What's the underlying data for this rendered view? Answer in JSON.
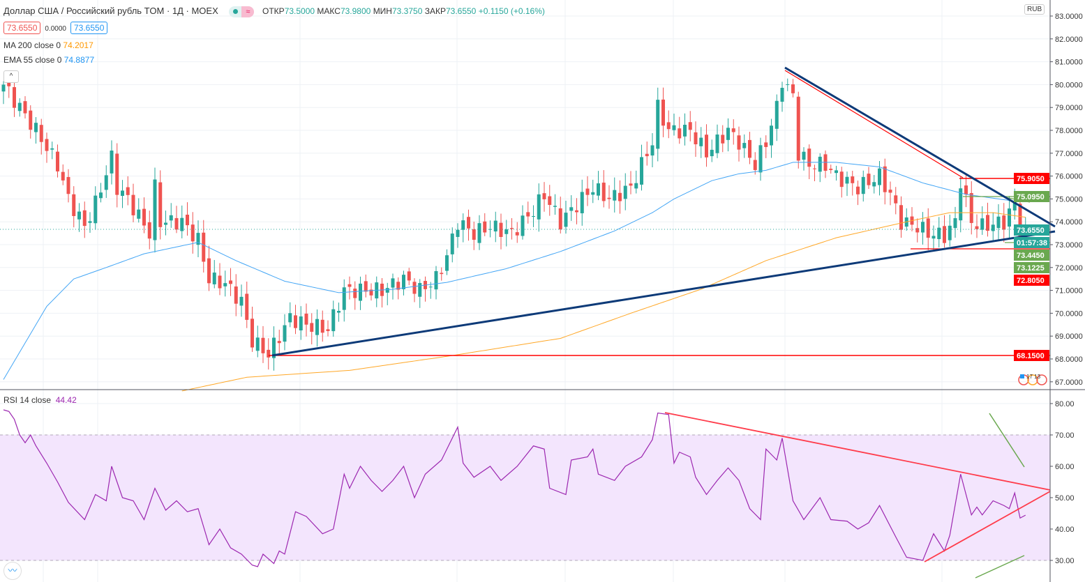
{
  "header": {
    "symbol": "Доллар США / Российский рубль TOM · 1Д · MOEX",
    "open_label": "ОТКР",
    "open": "73.5000",
    "high_label": "МАКС",
    "high": "73.9800",
    "low_label": "МИН",
    "low": "73.3750",
    "close_label": "ЗАКР",
    "close": "73.6550",
    "change": "+0.1150 (+0.16%)",
    "status_icon": "≈"
  },
  "quote": {
    "bid": "73.6550",
    "spread": "0.0000",
    "ask": "73.6550"
  },
  "indicators": {
    "ma_label": "MA 200 close 0",
    "ma_value": "74.2017",
    "ema_label": "EMA 55 close 0",
    "ema_value": "74.8877",
    "rsi_label": "RSI 14 close",
    "rsi_value": "44.42"
  },
  "currency": "RUB",
  "collapse_icon": "^",
  "logo_icon": "tradingview-logo",
  "colors": {
    "up": "#26a69a",
    "down": "#ef5350",
    "ema": "#42a5f5",
    "ma": "#ffa726",
    "rsi": "#9c27b0",
    "trend": "#0d3a78"
  },
  "chart_data": [
    {
      "type": "candlestick",
      "title": "Доллар США / Российский рубль TOM · 1Д · MOEX",
      "ylim": [
        66.6,
        83.0
      ],
      "yticks": [
        "83.0000",
        "82.0000",
        "81.0000",
        "80.0000",
        "79.0000",
        "78.0000",
        "77.0000",
        "76.0000",
        "75.0000",
        "74.0000",
        "73.0000",
        "72.0000",
        "71.0000",
        "70.0000",
        "69.0000",
        "68.0000",
        "67.0000"
      ],
      "close_path": [
        [
          0,
          80
        ],
        [
          6,
          78
        ],
        [
          10,
          76.5
        ],
        [
          12,
          75
        ],
        [
          15,
          73.8
        ],
        [
          17,
          74.8
        ],
        [
          20,
          76.8
        ],
        [
          21,
          75.5
        ],
        [
          23,
          75
        ],
        [
          27,
          73.5
        ],
        [
          28,
          75.5
        ],
        [
          29,
          74
        ],
        [
          33,
          74
        ],
        [
          36,
          73.2
        ],
        [
          38,
          71.5
        ],
        [
          41,
          71.3
        ],
        [
          44,
          70.5
        ],
        [
          46,
          68.8
        ],
        [
          49,
          68.2
        ],
        [
          53,
          69.8
        ],
        [
          56,
          69.5
        ],
        [
          60,
          69.3
        ],
        [
          63,
          71
        ],
        [
          66,
          71
        ],
        [
          70,
          71
        ],
        [
          74,
          71.5
        ],
        [
          77,
          71
        ],
        [
          80,
          71.5
        ],
        [
          82,
          72.5
        ],
        [
          84,
          74
        ],
        [
          87,
          73.5
        ],
        [
          90,
          73.8
        ],
        [
          94,
          73.5
        ],
        [
          98,
          74.5
        ],
        [
          100,
          75.2
        ],
        [
          103,
          74
        ],
        [
          105,
          74.5
        ],
        [
          107,
          75
        ],
        [
          109,
          75.5
        ],
        [
          112,
          75
        ],
        [
          116,
          75.5
        ],
        [
          118,
          76.5
        ],
        [
          120,
          77.5
        ],
        [
          121,
          79
        ],
        [
          123,
          78
        ],
        [
          125,
          78
        ],
        [
          127,
          78
        ],
        [
          130,
          77
        ],
        [
          132,
          77.5
        ],
        [
          134,
          78
        ],
        [
          136,
          77.5
        ],
        [
          139,
          76.5
        ],
        [
          141,
          77.5
        ],
        [
          143,
          79
        ],
        [
          144,
          80.2
        ],
        [
          146,
          79.5
        ],
        [
          147,
          77
        ],
        [
          149,
          76.5
        ],
        [
          152,
          76.5
        ],
        [
          154,
          76
        ],
        [
          158,
          75.5
        ],
        [
          162,
          76
        ],
        [
          164,
          75.2
        ],
        [
          166,
          74
        ],
        [
          169,
          73.8
        ],
        [
          171,
          73.5
        ],
        [
          174,
          73.4
        ],
        [
          176,
          74
        ],
        [
          177,
          75.8
        ],
        [
          179,
          74
        ],
        [
          181,
          73.8
        ],
        [
          185,
          74
        ],
        [
          187,
          74.8
        ],
        [
          188,
          73.6
        ],
        [
          189,
          73.655
        ]
      ],
      "ema55_path": [
        [
          0,
          67.1
        ],
        [
          8,
          70.3
        ],
        [
          13,
          71.5
        ],
        [
          19,
          72
        ],
        [
          26,
          72.6
        ],
        [
          36,
          73.1
        ],
        [
          43,
          72.3
        ],
        [
          52,
          71.4
        ],
        [
          62,
          70.9
        ],
        [
          72,
          71.05
        ],
        [
          82,
          71.35
        ],
        [
          93,
          71.95
        ],
        [
          103,
          72.7
        ],
        [
          113,
          73.6
        ],
        [
          120,
          74.4
        ],
        [
          124,
          75
        ],
        [
          131,
          75.8
        ],
        [
          136,
          76.1
        ],
        [
          141,
          76.25
        ],
        [
          146,
          76.6
        ],
        [
          154,
          76.6
        ],
        [
          162,
          76.4
        ],
        [
          170,
          75.7
        ],
        [
          178,
          75.2
        ],
        [
          187,
          74.9
        ],
        [
          189,
          74.89
        ]
      ],
      "ma200_path": [
        [
          33,
          66.6
        ],
        [
          45,
          67.2
        ],
        [
          64,
          67.5
        ],
        [
          83,
          68.15
        ],
        [
          103,
          68.9
        ],
        [
          116,
          70
        ],
        [
          129,
          71.05
        ],
        [
          141,
          72.3
        ],
        [
          154,
          73.3
        ],
        [
          167,
          74.0
        ],
        [
          175,
          74.4
        ],
        [
          183,
          74.4
        ],
        [
          189,
          74.2
        ]
      ],
      "price_labels": [
        {
          "value": "75.9050",
          "color": "#ff0000"
        },
        {
          "value": "75.0950",
          "color": "#6aa84f"
        },
        {
          "value": "73.6550",
          "color": "#26a69a"
        },
        {
          "value": "01:57:38",
          "color": "#26a69a"
        },
        {
          "value": "73.4450",
          "color": "#6aa84f"
        },
        {
          "value": "73.1225",
          "color": "#6aa84f"
        },
        {
          "value": "72.8050",
          "color": "#ff0000"
        },
        {
          "value": "68.1500",
          "color": "#ff0000"
        }
      ]
    },
    {
      "type": "line",
      "title": "RSI 14 close",
      "ylim": [
        24,
        82
      ],
      "yticks": [
        "80.00",
        "70.00",
        "60.00",
        "50.00",
        "40.00",
        "30.00"
      ],
      "band": [
        30,
        70
      ],
      "rsi_path": [
        [
          0,
          78
        ],
        [
          1,
          77.5
        ],
        [
          2,
          75
        ],
        [
          3,
          70
        ],
        [
          4,
          67.5
        ],
        [
          5,
          70
        ],
        [
          6,
          66.5
        ],
        [
          8,
          61
        ],
        [
          10,
          55
        ],
        [
          12,
          48.5
        ],
        [
          15,
          43
        ],
        [
          17,
          51
        ],
        [
          19,
          49
        ],
        [
          20,
          60
        ],
        [
          22,
          50
        ],
        [
          24,
          49
        ],
        [
          26,
          43
        ],
        [
          28,
          53
        ],
        [
          30,
          46
        ],
        [
          32,
          49
        ],
        [
          34,
          45.5
        ],
        [
          36,
          46.5
        ],
        [
          38,
          35
        ],
        [
          40,
          40
        ],
        [
          42,
          34
        ],
        [
          44,
          32
        ],
        [
          46,
          28.5
        ],
        [
          47,
          28
        ],
        [
          48,
          32
        ],
        [
          50,
          29
        ],
        [
          51,
          33
        ],
        [
          52,
          32
        ],
        [
          54,
          45.5
        ],
        [
          56,
          44
        ],
        [
          59,
          38.5
        ],
        [
          61,
          40
        ],
        [
          63,
          57.5
        ],
        [
          64,
          53
        ],
        [
          66,
          60
        ],
        [
          68,
          55.5
        ],
        [
          70,
          52
        ],
        [
          72,
          55.5
        ],
        [
          74,
          60
        ],
        [
          76,
          50
        ],
        [
          78,
          57.5
        ],
        [
          81,
          62
        ],
        [
          84,
          72.5
        ],
        [
          85,
          61
        ],
        [
          87,
          56.5
        ],
        [
          90,
          60
        ],
        [
          92,
          55.5
        ],
        [
          95,
          60
        ],
        [
          98,
          66.5
        ],
        [
          100,
          65.5
        ],
        [
          101,
          53
        ],
        [
          104,
          51
        ],
        [
          105,
          62
        ],
        [
          108,
          63
        ],
        [
          109,
          65.5
        ],
        [
          110,
          57.5
        ],
        [
          113,
          55.5
        ],
        [
          115,
          60
        ],
        [
          118,
          63
        ],
        [
          120,
          68.5
        ],
        [
          121,
          77
        ],
        [
          123,
          76.5
        ],
        [
          124,
          61
        ],
        [
          125,
          64.5
        ],
        [
          127,
          63
        ],
        [
          128,
          56.5
        ],
        [
          130,
          51
        ],
        [
          132,
          55.5
        ],
        [
          134,
          59.5
        ],
        [
          136,
          55.5
        ],
        [
          138,
          46.5
        ],
        [
          140,
          43
        ],
        [
          141,
          65.5
        ],
        [
          143,
          62
        ],
        [
          144,
          69
        ],
        [
          146,
          49
        ],
        [
          148,
          43
        ],
        [
          151,
          50
        ],
        [
          153,
          43
        ],
        [
          156,
          42.5
        ],
        [
          158,
          40
        ],
        [
          160,
          42
        ],
        [
          162,
          47.5
        ],
        [
          165,
          37.5
        ],
        [
          167,
          31
        ],
        [
          170,
          30
        ],
        [
          172,
          38.5
        ],
        [
          174,
          33
        ],
        [
          175,
          38
        ],
        [
          177,
          57.5
        ],
        [
          179,
          44.5
        ],
        [
          180,
          47
        ],
        [
          181,
          44.5
        ],
        [
          183,
          49
        ],
        [
          185,
          47.5
        ],
        [
          186,
          46.5
        ],
        [
          187,
          51.5
        ],
        [
          188,
          43.5
        ],
        [
          189,
          44.42
        ]
      ]
    }
  ]
}
